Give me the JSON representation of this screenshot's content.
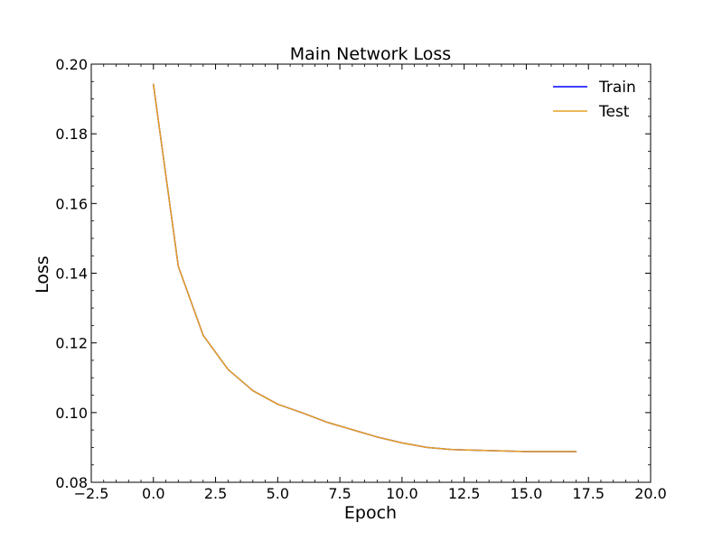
{
  "chart_data": {
    "type": "line",
    "title": "Main Network Loss",
    "xlabel": "Epoch",
    "ylabel": "Loss",
    "xlim": [
      -2.5,
      20.0
    ],
    "ylim": [
      0.08,
      0.2
    ],
    "x_ticks": [
      "−2.5",
      "0.0",
      "2.5",
      "5.0",
      "7.5",
      "10.0",
      "12.5",
      "15.0",
      "17.5",
      "20.0"
    ],
    "y_ticks": [
      "0.08",
      "0.10",
      "0.12",
      "0.14",
      "0.16",
      "0.18",
      "0.20"
    ],
    "grid": false,
    "legend_position": "top-right",
    "x": [
      0,
      1,
      2,
      3,
      4,
      5,
      6,
      7,
      8,
      9,
      10,
      11,
      12,
      13,
      14,
      15,
      16,
      17
    ],
    "series": [
      {
        "name": "Train",
        "color": "#0000ff",
        "values": [
          0.1942,
          0.142,
          0.1222,
          0.1124,
          0.1063,
          0.1024,
          0.0999,
          0.0972,
          0.0951,
          0.093,
          0.0913,
          0.09,
          0.0894,
          0.0892,
          0.089,
          0.0888,
          0.0888,
          0.0888
        ]
      },
      {
        "name": "Test",
        "color": "#e8a020",
        "values": [
          0.1942,
          0.142,
          0.1222,
          0.1124,
          0.1063,
          0.1024,
          0.0999,
          0.0972,
          0.0951,
          0.093,
          0.0913,
          0.09,
          0.0894,
          0.0892,
          0.089,
          0.0888,
          0.0888,
          0.0888
        ]
      }
    ]
  }
}
